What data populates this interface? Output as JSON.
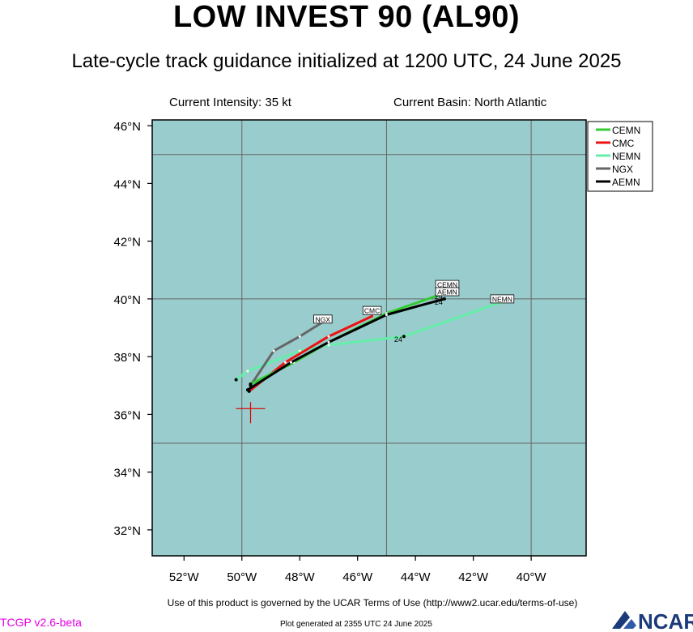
{
  "header": {
    "title": "LOW INVEST 90 (AL90)",
    "subtitle": "Late-cycle track guidance initialized at 1200 UTC, 24 June 2025",
    "intensity": "Current Intensity: 35 kt",
    "basin": "Current Basin: North Atlantic"
  },
  "footer": {
    "terms": "Use of this product is governed by the UCAR Terms of Use (http://www2.ucar.edu/terms-of-use)",
    "version": "TCGP v2.6-beta",
    "generated": "Plot generated at 2355 UTC   24 June 2025",
    "logo_text": "NCAR"
  },
  "map": {
    "type": "track_map",
    "lon_range": [
      -53.1,
      -38.1
    ],
    "lat_range": [
      31.1,
      46.2
    ],
    "lon_ticks": [
      -52,
      -50,
      -48,
      -46,
      -44,
      -42,
      -40
    ],
    "lon_tick_labels": [
      "52°W",
      "50°W",
      "48°W",
      "46°W",
      "44°W",
      "42°W",
      "40°W"
    ],
    "lat_ticks": [
      32,
      34,
      36,
      38,
      40,
      42,
      44,
      46
    ],
    "lat_tick_labels": [
      "32°N",
      "34°N",
      "36°N",
      "38°N",
      "40°N",
      "42°N",
      "44°N",
      "46°N"
    ],
    "grid_lons": [
      -50,
      -45,
      -40
    ],
    "grid_lats": [
      35,
      40,
      45
    ],
    "colors": {
      "ocean": "#99cccc",
      "grid": "#666666",
      "current_position": "#e00000"
    },
    "current_position": {
      "lon": -49.7,
      "lat": 36.2
    },
    "legend": {
      "placement": "top-right",
      "entries": [
        {
          "name": "CEMN",
          "color": "#33cc33"
        },
        {
          "name": "CMC",
          "color": "#ee1111"
        },
        {
          "name": "NEMN",
          "color": "#66eeaa"
        },
        {
          "name": "NGX",
          "color": "#666666"
        },
        {
          "name": "AEMN",
          "color": "#000000"
        }
      ]
    },
    "tracks": [
      {
        "name": "NEMN",
        "color": "#66eeaa",
        "label": "NEMN",
        "points": [
          [
            -50.2,
            37.2
          ],
          [
            -49.8,
            37.5
          ],
          [
            -48.0,
            38.2
          ],
          [
            -47.0,
            38.4
          ],
          [
            -44.4,
            38.7
          ],
          [
            -41.0,
            39.9
          ]
        ],
        "hour_label": "24",
        "hour_point": [
          -44.4,
          38.7
        ]
      },
      {
        "name": "NGX",
        "color": "#666666",
        "label": "NGX",
        "points": [
          [
            -49.7,
            37.0
          ],
          [
            -48.9,
            38.2
          ],
          [
            -48.0,
            38.7
          ],
          [
            -47.2,
            39.2
          ]
        ]
      },
      {
        "name": "CMC",
        "color": "#ee1111",
        "label": "CMC",
        "points": [
          [
            -49.75,
            36.8
          ],
          [
            -48.5,
            37.8
          ],
          [
            -47.0,
            38.7
          ],
          [
            -45.5,
            39.4
          ]
        ]
      },
      {
        "name": "CEMN",
        "color": "#33cc33",
        "label": "CEMN",
        "points": [
          [
            -49.7,
            37.05
          ],
          [
            -48.2,
            37.8
          ],
          [
            -47.0,
            38.5
          ],
          [
            -45.0,
            39.5
          ],
          [
            -43.0,
            40.2
          ]
        ],
        "hour_label": "24",
        "hour_point": [
          -43.0,
          40.2
        ]
      },
      {
        "name": "AEMN",
        "color": "#000000",
        "label": "AEMN",
        "points": [
          [
            -49.8,
            36.85
          ],
          [
            -48.3,
            37.8
          ],
          [
            -47.0,
            38.5
          ],
          [
            -45.0,
            39.45
          ],
          [
            -43.0,
            40.0
          ]
        ],
        "hour_label": "24",
        "hour_point": [
          -43.0,
          40.0
        ]
      }
    ]
  }
}
